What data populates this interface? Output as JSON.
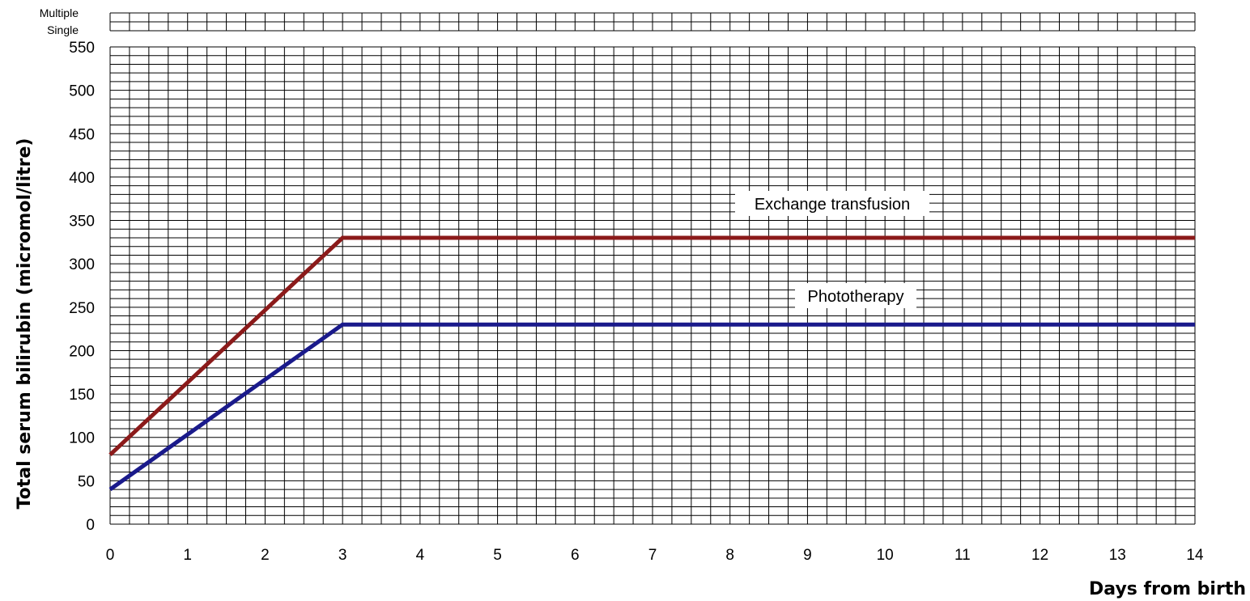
{
  "chart_data": {
    "type": "line",
    "title": "",
    "xlabel": "Days from birth",
    "ylabel": "Total serum bilirubin  (micromol/litre)",
    "xlim": [
      0,
      14
    ],
    "ylim": [
      0,
      550
    ],
    "x_ticks": [
      0,
      1,
      2,
      3,
      4,
      5,
      6,
      7,
      8,
      9,
      10,
      11,
      12,
      13,
      14
    ],
    "y_ticks": [
      0,
      50,
      100,
      150,
      200,
      250,
      300,
      350,
      400,
      450,
      500,
      550
    ],
    "grid": true,
    "header_rows": [
      "Multiple",
      "Single"
    ],
    "series": [
      {
        "name": "Exchange transfusion",
        "color": "#8b1a1a",
        "x": [
          0,
          3,
          14
        ],
        "y": [
          80,
          330,
          330
        ]
      },
      {
        "name": "Phototherapy",
        "color": "#1a1a8b",
        "x": [
          0,
          3,
          14
        ],
        "y": [
          40,
          230,
          230
        ]
      }
    ]
  }
}
